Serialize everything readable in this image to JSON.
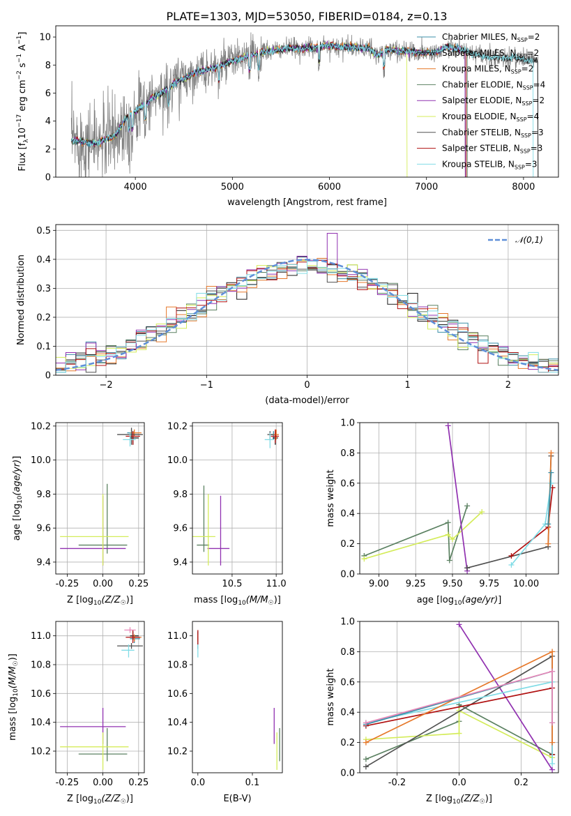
{
  "figure_title": "PLATE=1303, MJD=53050, FIBERID=0184, z=0.13",
  "models": [
    {
      "name": "Chabrier MILES",
      "nssp": "2",
      "color": "#3a8fa8"
    },
    {
      "name": "Salpeter MILES",
      "nssp": "2",
      "color": "#1a1a1a"
    },
    {
      "name": "Kroupa MILES",
      "nssp": "2",
      "color": "#e6782a"
    },
    {
      "name": "Chabrier ELODIE",
      "nssp": "4",
      "color": "#5a8060"
    },
    {
      "name": "Salpeter ELODIE",
      "nssp": "2",
      "color": "#9030b0"
    },
    {
      "name": "Kroupa ELODIE",
      "nssp": "4",
      "color": "#d4ec5a"
    },
    {
      "name": "Chabrier STELIB",
      "nssp": "3",
      "color": "#505050"
    },
    {
      "name": "Salpeter STELIB",
      "nssp": "3",
      "color": "#b01010"
    },
    {
      "name": "Kroupa STELIB",
      "nssp": "3",
      "color": "#80dce6"
    }
  ],
  "chart_data": [
    {
      "id": "spectrum",
      "type": "line",
      "xlabel": "wavelength [Angstrom, rest frame]",
      "ylabel": "Flux [f_λ10^-17 erg cm^-2 s^-1 A^-1]",
      "xlim": [
        3180,
        8360
      ],
      "ylim": [
        0,
        10.8
      ],
      "xticks": [
        4000,
        5000,
        6000,
        7000,
        8000
      ],
      "yticks": [
        0,
        2,
        4,
        6,
        8,
        10
      ],
      "legend": "upper right",
      "grid": false,
      "continuum_x": [
        3340,
        3400,
        3500,
        3600,
        3700,
        3800,
        3900,
        4000,
        4100,
        4200,
        4300,
        4400,
        4500,
        4600,
        4700,
        4800,
        4900,
        5000,
        5100,
        5200,
        5300,
        5400,
        5500,
        5600,
        5700,
        5800,
        5900,
        6000,
        6100,
        6200,
        6300,
        6400,
        6500,
        6600,
        6700,
        6800,
        6900,
        7000,
        7100,
        7200,
        7300,
        7400,
        7500,
        7600,
        7700,
        7800,
        7900,
        8000,
        8100
      ],
      "continuum_y": [
        2.6,
        2.6,
        2.5,
        2.4,
        2.7,
        3.0,
        4.2,
        4.7,
        5.2,
        5.8,
        6.1,
        6.7,
        7.0,
        7.4,
        7.6,
        7.8,
        8.0,
        8.3,
        8.5,
        8.7,
        8.9,
        9.0,
        9.1,
        9.2,
        9.2,
        9.2,
        9.3,
        9.4,
        9.3,
        9.3,
        9.2,
        9.2,
        8.7,
        9.1,
        9.0,
        9.0,
        8.9,
        8.9,
        8.9,
        9.3,
        9.2,
        9.0,
        8.7,
        8.6,
        8.5,
        8.5,
        8.5,
        8.4,
        8.3
      ],
      "model_endpoints": [
        7400,
        8150,
        7400,
        7420,
        7400,
        6800,
        8150,
        7410,
        8100
      ]
    },
    {
      "id": "residuals",
      "type": "histogram",
      "xlabel": "(data-model)/error",
      "ylabel": "Normed distribution",
      "xlim": [
        -2.5,
        2.5
      ],
      "ylim": [
        0,
        0.52
      ],
      "xticks": [
        -2,
        -1,
        0,
        1,
        2
      ],
      "yticks": [
        0.0,
        0.1,
        0.2,
        0.3,
        0.4,
        0.5
      ],
      "grid": true,
      "legend_label": "𝒩(0,1)",
      "legend": "upper right",
      "bin_edges_range": [
        -2.5,
        2.5
      ],
      "bin_count": 50
    },
    {
      "id": "age_vs_Z",
      "type": "scatter",
      "xlabel": "Z [log10(Z/Z☉)]",
      "ylabel": "age [log10(age/yr)]",
      "xlim": [
        -0.33,
        0.29
      ],
      "ylim": [
        9.33,
        10.22
      ],
      "xticks": [
        -0.25,
        0.0,
        0.25
      ],
      "yticks": [
        9.4,
        9.6,
        9.8,
        10.0,
        10.2
      ],
      "grid": true,
      "points": [
        {
          "model": 3,
          "x": 0.03,
          "y": 9.5,
          "xerr": [
            0.2,
            0.14
          ],
          "yerr": [
            0.05,
            0.36
          ]
        },
        {
          "model": 4,
          "x": 0.0,
          "y": 9.48,
          "xerr": [
            0.3,
            0.16
          ],
          "yerr": [
            0.1,
            0.31
          ]
        },
        {
          "model": 5,
          "x": 0.0,
          "y": 9.55,
          "xerr": [
            0.3,
            0.18
          ],
          "yerr": [
            0.17,
            0.25
          ]
        },
        {
          "model": 0,
          "x": 0.2,
          "y": 10.16,
          "xerr": [
            0.03,
            0.05
          ],
          "yerr": [
            0.03,
            0.02
          ]
        },
        {
          "model": 1,
          "x": 0.21,
          "y": 10.13,
          "xerr": [
            0.02,
            0.04
          ],
          "yerr": [
            0.04,
            0.04
          ]
        },
        {
          "model": 2,
          "x": 0.22,
          "y": 10.16,
          "xerr": [
            0.03,
            0.05
          ],
          "yerr": [
            0.02,
            0.02
          ]
        },
        {
          "model": 6,
          "x": 0.2,
          "y": 10.15,
          "xerr": [
            0.1,
            0.08
          ],
          "yerr": [
            0.06,
            0.04
          ]
        },
        {
          "model": 7,
          "x": 0.21,
          "y": 10.14,
          "xerr": [
            0.05,
            0.05
          ],
          "yerr": [
            0.05,
            0.03
          ]
        },
        {
          "model": 8,
          "x": 0.19,
          "y": 10.12,
          "xerr": [
            0.05,
            0.04
          ],
          "yerr": [
            0.04,
            0.04
          ]
        }
      ]
    },
    {
      "id": "age_vs_mass",
      "type": "scatter",
      "xlabel": "mass [log10(M/M☉)]",
      "ylabel": "",
      "xlim": [
        10.05,
        11.07
      ],
      "ylim": [
        9.33,
        10.22
      ],
      "xticks": [
        10.5,
        11.0
      ],
      "yticks": [
        9.4,
        9.6,
        9.8,
        10.0,
        10.2
      ],
      "grid": true,
      "points": [
        {
          "model": 3,
          "x": 10.18,
          "y": 9.5,
          "xerr": [
            0.08,
            0.06
          ],
          "yerr": [
            0.04,
            0.35
          ]
        },
        {
          "model": 4,
          "x": 10.37,
          "y": 9.48,
          "xerr": [
            0.15,
            0.1
          ],
          "yerr": [
            0.1,
            0.31
          ]
        },
        {
          "model": 5,
          "x": 10.23,
          "y": 9.55,
          "xerr": [
            0.18,
            0.08
          ],
          "yerr": [
            0.17,
            0.25
          ]
        },
        {
          "model": 0,
          "x": 10.97,
          "y": 10.15,
          "xerr": [
            0.03,
            0.04
          ],
          "yerr": [
            0.03,
            0.02
          ]
        },
        {
          "model": 1,
          "x": 10.99,
          "y": 10.13,
          "xerr": [
            0.03,
            0.03
          ],
          "yerr": [
            0.04,
            0.04
          ]
        },
        {
          "model": 2,
          "x": 11.0,
          "y": 10.15,
          "xerr": [
            0.03,
            0.03
          ],
          "yerr": [
            0.03,
            0.03
          ]
        },
        {
          "model": 6,
          "x": 10.93,
          "y": 10.15,
          "xerr": [
            0.03,
            0.04
          ],
          "yerr": [
            0.03,
            0.02
          ]
        },
        {
          "model": 7,
          "x": 10.99,
          "y": 10.14,
          "xerr": [
            0.05,
            0.04
          ],
          "yerr": [
            0.04,
            0.04
          ]
        },
        {
          "model": 8,
          "x": 10.93,
          "y": 10.12,
          "xerr": [
            0.06,
            0.04
          ],
          "yerr": [
            0.05,
            0.04
          ]
        }
      ]
    },
    {
      "id": "mass_weight_vs_age",
      "type": "line",
      "xlabel": "age [log10(age/yr)]",
      "ylabel": "mass weight",
      "xlim": [
        8.87,
        10.22
      ],
      "ylim": [
        0,
        1.0
      ],
      "xticks": [
        9.0,
        9.25,
        9.5,
        9.75,
        10.0
      ],
      "yticks": [
        0.0,
        0.2,
        0.4,
        0.6,
        0.8,
        1.0
      ],
      "grid": true,
      "series": [
        {
          "model": 3,
          "x": [
            8.9,
            9.47,
            9.48,
            9.6
          ],
          "y": [
            0.12,
            0.34,
            0.09,
            0.45
          ]
        },
        {
          "model": 5,
          "x": [
            8.9,
            9.47,
            9.5,
            9.7
          ],
          "y": [
            0.1,
            0.26,
            0.23,
            0.41
          ]
        },
        {
          "model": 4,
          "x": [
            9.47,
            9.6
          ],
          "y": [
            0.98,
            0.02
          ]
        },
        {
          "model": 6,
          "x": [
            9.6,
            10.15,
            10.17
          ],
          "y": [
            0.04,
            0.18,
            0.78
          ]
        },
        {
          "model": 7,
          "x": [
            9.9,
            10.15,
            10.18
          ],
          "y": [
            0.12,
            0.31,
            0.57
          ]
        },
        {
          "model": 8,
          "x": [
            9.9,
            10.13,
            10.17
          ],
          "y": [
            0.06,
            0.33,
            0.6
          ]
        },
        {
          "model": 2,
          "x": [
            10.15,
            10.17
          ],
          "y": [
            0.2,
            0.8
          ]
        },
        {
          "model": 0,
          "x": [
            10.15,
            10.17
          ],
          "y": [
            0.33,
            0.67
          ]
        }
      ]
    },
    {
      "id": "mass_vs_Z",
      "type": "scatter",
      "xlabel": "Z [log10(Z/Z☉)]",
      "ylabel": "mass [log10(M/M☉)]",
      "xlim": [
        -0.33,
        0.29
      ],
      "ylim": [
        10.05,
        11.1
      ],
      "xticks": [
        -0.25,
        0.0,
        0.25
      ],
      "yticks": [
        10.2,
        10.4,
        10.6,
        10.8,
        11.0
      ],
      "grid": true,
      "points": [
        {
          "model": 3,
          "x": 0.03,
          "y": 10.18,
          "xerr": [
            0.2,
            0.14
          ],
          "yerr": [
            0.05,
            0.18
          ]
        },
        {
          "model": 4,
          "x": 0.0,
          "y": 10.37,
          "xerr": [
            0.3,
            0.16
          ],
          "yerr": [
            0.12,
            0.13
          ]
        },
        {
          "model": 5,
          "x": 0.0,
          "y": 10.23,
          "xerr": [
            0.3,
            0.18
          ],
          "yerr": [
            0.16,
            0.1
          ]
        },
        {
          "model": 0,
          "x": 0.22,
          "y": 10.98,
          "xerr": [
            0.03,
            0.04
          ],
          "yerr": [
            0.03,
            0.02
          ]
        },
        {
          "model": 1,
          "x": 0.21,
          "y": 11.0,
          "xerr": [
            0.02,
            0.04
          ],
          "yerr": [
            0.03,
            0.03
          ]
        },
        {
          "model": 2,
          "x": 0.22,
          "y": 10.99,
          "xerr": [
            0.03,
            0.05
          ],
          "yerr": [
            0.03,
            0.02
          ]
        },
        {
          "model": 6,
          "x": 0.2,
          "y": 10.93,
          "xerr": [
            0.1,
            0.08
          ],
          "yerr": [
            0.02,
            0.02
          ]
        },
        {
          "model": 7,
          "x": 0.21,
          "y": 10.99,
          "xerr": [
            0.05,
            0.05
          ],
          "yerr": [
            0.04,
            0.05
          ]
        },
        {
          "model": 8,
          "x": 0.18,
          "y": 10.9,
          "xerr": [
            0.05,
            0.04
          ],
          "yerr": [
            0.05,
            0.04
          ]
        }
      ],
      "extra_points": [
        {
          "color": "#e888b8",
          "x": 0.19,
          "y": 11.04,
          "xerr": [
            0.04,
            0.04
          ],
          "yerr": [
            0.02,
            0.02
          ]
        }
      ]
    },
    {
      "id": "mass_vs_EBV",
      "type": "scatter",
      "xlabel": "E(B-V)",
      "ylabel": "",
      "xlim": [
        -0.01,
        0.155
      ],
      "ylim": [
        10.05,
        11.1
      ],
      "xticks": [
        0.0,
        0.1
      ],
      "yticks": [
        10.2,
        10.4,
        10.6,
        10.8,
        11.0
      ],
      "grid": false,
      "points": [
        {
          "model": 3,
          "x": 0.15,
          "y": 10.18,
          "xerr": [
            0,
            0
          ],
          "yerr": [
            0.05,
            0.18
          ]
        },
        {
          "model": 4,
          "x": 0.14,
          "y": 10.37,
          "xerr": [
            0,
            0
          ],
          "yerr": [
            0.12,
            0.13
          ]
        },
        {
          "model": 5,
          "x": 0.145,
          "y": 10.23,
          "xerr": [
            0,
            0
          ],
          "yerr": [
            0.16,
            0.1
          ]
        },
        {
          "model": 0,
          "x": 0.0,
          "y": 10.98,
          "xerr": [
            0,
            0
          ],
          "yerr": [
            0.03,
            0.02
          ]
        },
        {
          "model": 1,
          "x": 0.0,
          "y": 11.0,
          "xerr": [
            0,
            0
          ],
          "yerr": [
            0.03,
            0.03
          ]
        },
        {
          "model": 2,
          "x": 0.0,
          "y": 10.99,
          "xerr": [
            0,
            0
          ],
          "yerr": [
            0.03,
            0.02
          ]
        },
        {
          "model": 6,
          "x": 0.0,
          "y": 10.93,
          "xerr": [
            0,
            0
          ],
          "yerr": [
            0.02,
            0.02
          ]
        },
        {
          "model": 7,
          "x": 0.0,
          "y": 10.99,
          "xerr": [
            0,
            0
          ],
          "yerr": [
            0.05,
            0.05
          ]
        },
        {
          "model": 8,
          "x": 0.0,
          "y": 10.9,
          "xerr": [
            0,
            0
          ],
          "yerr": [
            0.05,
            0.04
          ]
        }
      ]
    },
    {
      "id": "mass_weight_vs_Z",
      "type": "line",
      "xlabel": "Z [log10(Z/Z☉)]",
      "ylabel": "mass weight",
      "xlim": [
        -0.32,
        0.32
      ],
      "ylim": [
        0,
        1.0
      ],
      "xticks": [
        -0.2,
        0.0,
        0.2
      ],
      "yticks": [
        0.0,
        0.2,
        0.4,
        0.6,
        0.8,
        1.0
      ],
      "grid": true,
      "series": [
        {
          "model": 3,
          "x": [
            -0.3,
            0.0,
            0.0,
            0.3
          ],
          "y": [
            0.09,
            0.34,
            0.45,
            0.12
          ]
        },
        {
          "model": 5,
          "x": [
            -0.3,
            0.0,
            0.0,
            0.3
          ],
          "y": [
            0.22,
            0.26,
            0.41,
            0.1
          ]
        },
        {
          "model": 4,
          "x": [
            0.0,
            0.3
          ],
          "y": [
            0.98,
            0.02
          ]
        },
        {
          "model": 6,
          "x": [
            -0.3,
            0.3,
            0.3
          ],
          "y": [
            0.04,
            0.77,
            0.12
          ]
        },
        {
          "model": 7,
          "x": [
            -0.3,
            0.3,
            0.3
          ],
          "y": [
            0.31,
            0.56,
            0.12
          ]
        },
        {
          "model": 8,
          "x": [
            -0.3,
            0.3,
            0.3
          ],
          "y": [
            0.33,
            0.6,
            0.06
          ]
        },
        {
          "model": 2,
          "x": [
            -0.3,
            0.3,
            0.3
          ],
          "y": [
            0.2,
            0.8,
            0.2
          ]
        },
        {
          "model": 0,
          "x": [
            -0.3,
            0.3,
            0.3
          ],
          "y": [
            0.32,
            0.67,
            0.33
          ]
        }
      ],
      "extra_series": [
        {
          "color": "#e888b8",
          "x": [
            -0.3,
            0.3,
            0.3
          ],
          "y": [
            0.33,
            0.67,
            0.33
          ]
        }
      ]
    }
  ]
}
